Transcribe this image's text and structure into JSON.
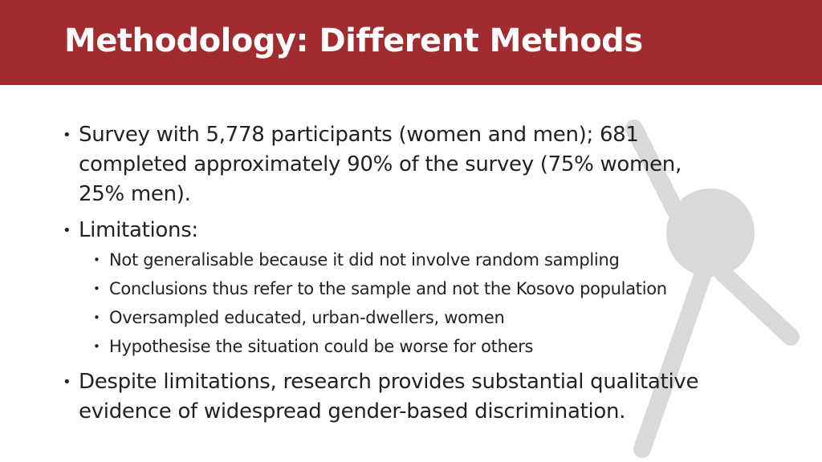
{
  "header": {
    "title": "Methodology: Different Methods"
  },
  "bullets": [
    {
      "text": "Survey with 5,778 participants (women and men); 681 completed approximately 90% of the survey (75% women, 25% men)."
    },
    {
      "text": "Limitations:",
      "sub": [
        "Not generalisable because it did not involve random sampling",
        "Conclusions thus refer to the sample and not the Kosovo population",
        "Oversampled educated, urban-dwellers, women",
        "Hypothesise the situation could be worse for others"
      ]
    },
    {
      "text": "Despite limitations, research provides substantial qualitative evidence of widespread gender-based discrimination."
    }
  ]
}
